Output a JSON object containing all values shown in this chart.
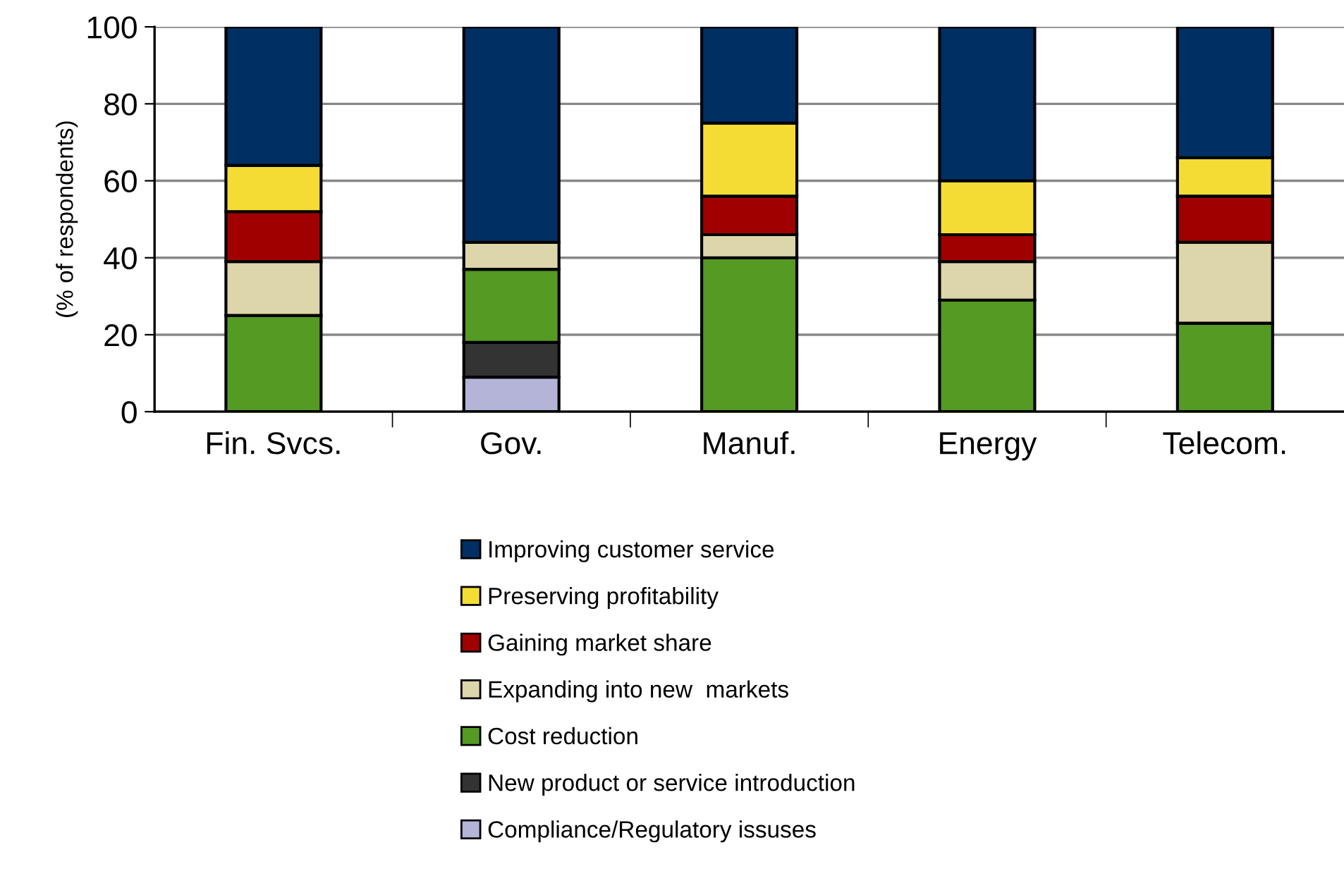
{
  "chart_data": {
    "type": "bar",
    "stacked": true,
    "ylabel": "(% of respondents)",
    "categories": [
      "Fin. Svcs.",
      "Gov.",
      "Manuf.",
      "Energy",
      "Telecom."
    ],
    "series": [
      {
        "name": "Compliance/Regulatory issuses",
        "color": "#b4b4d8",
        "values": [
          0,
          9,
          0,
          0,
          0
        ]
      },
      {
        "name": "New product or service introduction",
        "color": "#333333",
        "values": [
          0,
          9,
          0,
          0,
          0
        ]
      },
      {
        "name": "Cost reduction",
        "color": "#559a23",
        "values": [
          25,
          19,
          40,
          29,
          23
        ]
      },
      {
        "name": "Expanding into new  markets",
        "color": "#ddd6ab",
        "values": [
          14,
          7,
          6,
          10,
          21
        ]
      },
      {
        "name": "Gaining market share",
        "color": "#a00000",
        "values": [
          13,
          0,
          10,
          7,
          12
        ]
      },
      {
        "name": "Preserving profitability",
        "color": "#f5dc35",
        "values": [
          12,
          0,
          19,
          14,
          10
        ]
      },
      {
        "name": "Improving customer service",
        "color": "#003063",
        "values": [
          36,
          56,
          25,
          40,
          34
        ]
      }
    ],
    "ylim": [
      0,
      100
    ],
    "yticks": [
      0,
      20,
      40,
      60,
      80,
      100
    ],
    "grid": "y",
    "legend": "bottom"
  }
}
